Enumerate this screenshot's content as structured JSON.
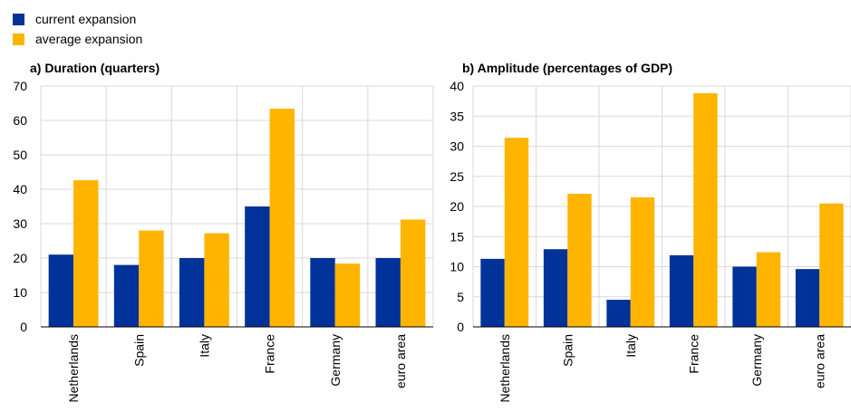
{
  "legend": [
    {
      "label": "current expansion",
      "color": "#003299"
    },
    {
      "label": "average expansion",
      "color": "#FFB400"
    }
  ],
  "chart_data": [
    {
      "type": "bar",
      "title": "a) Duration (quarters)",
      "categories": [
        "Netherlands",
        "Spain",
        "Italy",
        "France",
        "Germany",
        "euro area"
      ],
      "series": [
        {
          "name": "current expansion",
          "values": [
            21,
            18,
            20,
            35,
            20,
            20
          ],
          "color": "#003299"
        },
        {
          "name": "average expansion",
          "values": [
            42.6,
            28,
            27.2,
            63.4,
            18.4,
            31.2
          ],
          "color": "#FFB400"
        }
      ],
      "ylim": [
        0,
        70
      ],
      "yticks": [
        0,
        10,
        20,
        30,
        40,
        50,
        60,
        70
      ],
      "grid": true,
      "legend": "top-left"
    },
    {
      "type": "bar",
      "title": "b) Amplitude (percentages of GDP)",
      "categories": [
        "Netherlands",
        "Spain",
        "Italy",
        "France",
        "Germany",
        "euro area"
      ],
      "series": [
        {
          "name": "current expansion",
          "values": [
            11.3,
            12.9,
            4.5,
            11.9,
            10,
            9.6
          ],
          "color": "#003299"
        },
        {
          "name": "average expansion",
          "values": [
            31.4,
            22.1,
            21.5,
            38.8,
            12.4,
            20.5
          ],
          "color": "#FFB400"
        }
      ],
      "ylim": [
        0,
        40
      ],
      "yticks": [
        0,
        5,
        10,
        15,
        20,
        25,
        30,
        35,
        40
      ],
      "grid": true,
      "legend": "top-left"
    }
  ]
}
